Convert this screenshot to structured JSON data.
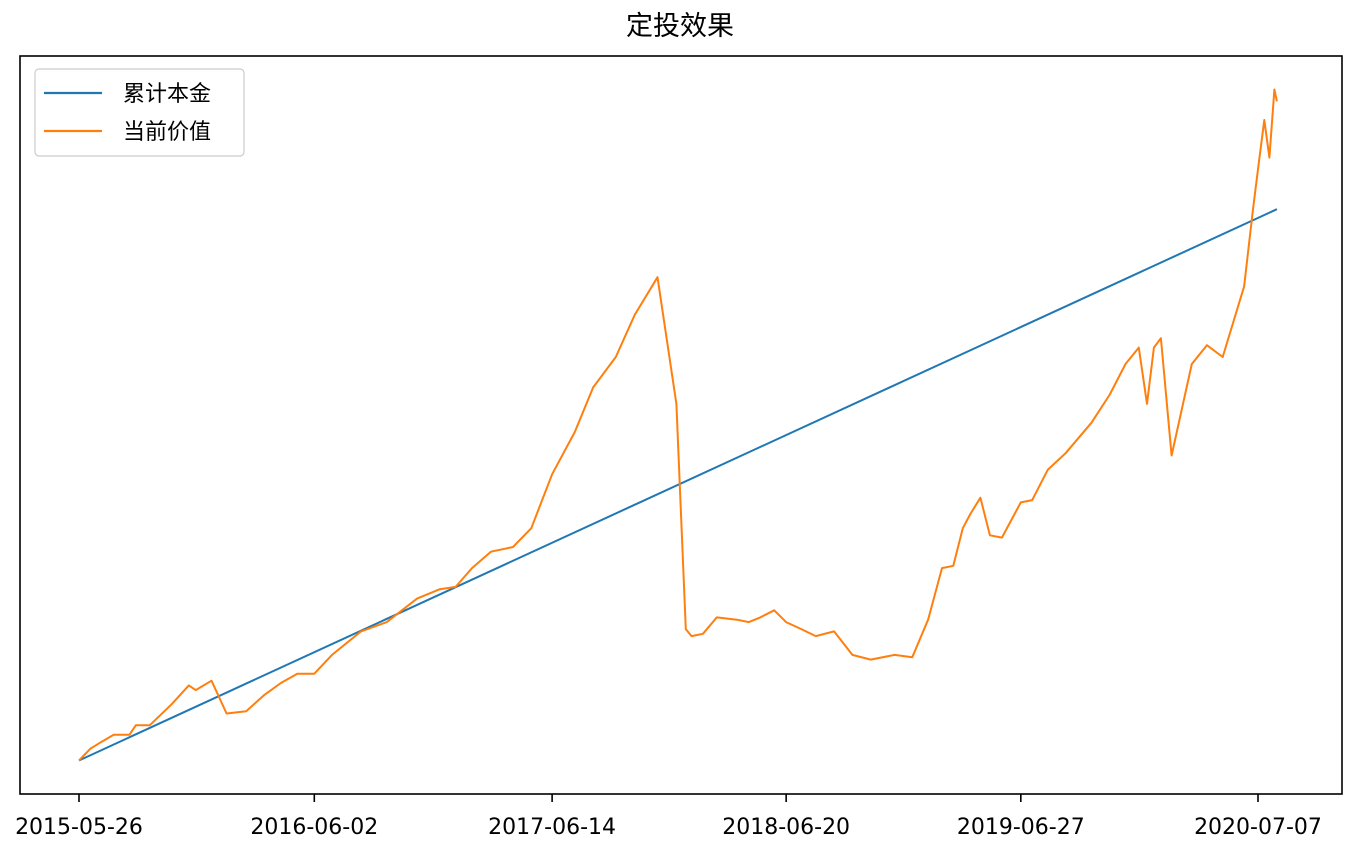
{
  "chart_data": {
    "type": "line",
    "title": "定投效果",
    "xlabel": "",
    "ylabel": "",
    "x_tick_labels": [
      "2015-05-26",
      "2016-06-02",
      "2017-06-14",
      "2018-06-20",
      "2019-06-27",
      "2020-07-07"
    ],
    "x_range": [
      "2015-05-26",
      "2020-08-14"
    ],
    "y_tick_labels": [],
    "grid": false,
    "legend_position": "upper-left",
    "series": [
      {
        "name": "累计本金",
        "color": "#1f77b4",
        "x": [
          "2015-05-26",
          "2020-08-06"
        ],
        "y": [
          0.0,
          2.35
        ]
      },
      {
        "name": "当前价值",
        "color": "#ff7f0e",
        "x": [
          "2015-05-26",
          "2015-06-13",
          "2015-07-01",
          "2015-07-20",
          "2015-08-14",
          "2015-08-24",
          "2015-09-15",
          "2015-10-20",
          "2015-11-16",
          "2015-11-27",
          "2015-12-22",
          "2016-01-15",
          "2016-02-15",
          "2016-03-15",
          "2016-04-10",
          "2016-05-06",
          "2016-06-02",
          "2016-06-30",
          "2016-08-15",
          "2016-09-25",
          "2016-11-12",
          "2016-12-18",
          "2017-01-12",
          "2017-02-07",
          "2017-03-09",
          "2017-04-13",
          "2017-05-12",
          "2017-06-14",
          "2017-07-20",
          "2017-08-18",
          "2017-09-23",
          "2017-10-23",
          "2017-11-28",
          "2017-12-28",
          "2018-01-12",
          "2018-01-21",
          "2018-02-08",
          "2018-03-02",
          "2018-04-03",
          "2018-04-22",
          "2018-05-10",
          "2018-06-01",
          "2018-06-20",
          "2018-07-14",
          "2018-08-06",
          "2018-09-04",
          "2018-10-03",
          "2018-11-01",
          "2018-12-09",
          "2019-01-06",
          "2019-01-31",
          "2019-02-22",
          "2019-03-12",
          "2019-03-27",
          "2019-04-08",
          "2019-04-24",
          "2019-05-09",
          "2019-05-28",
          "2019-06-27",
          "2019-07-15",
          "2019-08-09",
          "2019-09-06",
          "2019-10-17",
          "2019-11-15",
          "2019-12-10",
          "2019-12-31",
          "2020-01-13",
          "2020-01-24",
          "2020-02-04",
          "2020-02-21",
          "2020-03-24",
          "2020-04-17",
          "2020-05-12",
          "2020-06-15",
          "2020-06-29",
          "2020-07-07",
          "2020-07-17",
          "2020-07-25",
          "2020-08-02",
          "2020-08-06"
        ],
        "y": [
          0.0,
          0.05,
          0.08,
          0.11,
          0.11,
          0.15,
          0.15,
          0.24,
          0.32,
          0.3,
          0.34,
          0.2,
          0.21,
          0.28,
          0.33,
          0.37,
          0.37,
          0.45,
          0.55,
          0.59,
          0.69,
          0.73,
          0.74,
          0.82,
          0.89,
          0.91,
          0.99,
          1.22,
          1.4,
          1.59,
          1.72,
          1.9,
          2.06,
          1.52,
          0.56,
          0.53,
          0.54,
          0.61,
          0.6,
          0.59,
          0.61,
          0.64,
          0.59,
          0.56,
          0.53,
          0.55,
          0.45,
          0.43,
          0.45,
          0.44,
          0.6,
          0.82,
          0.83,
          0.99,
          1.05,
          1.12,
          0.96,
          0.95,
          1.1,
          1.11,
          1.24,
          1.31,
          1.44,
          1.56,
          1.69,
          1.76,
          1.52,
          1.76,
          1.8,
          1.3,
          1.69,
          1.77,
          1.72,
          2.02,
          2.35,
          2.52,
          2.73,
          2.57,
          2.86,
          2.81
        ]
      }
    ]
  }
}
